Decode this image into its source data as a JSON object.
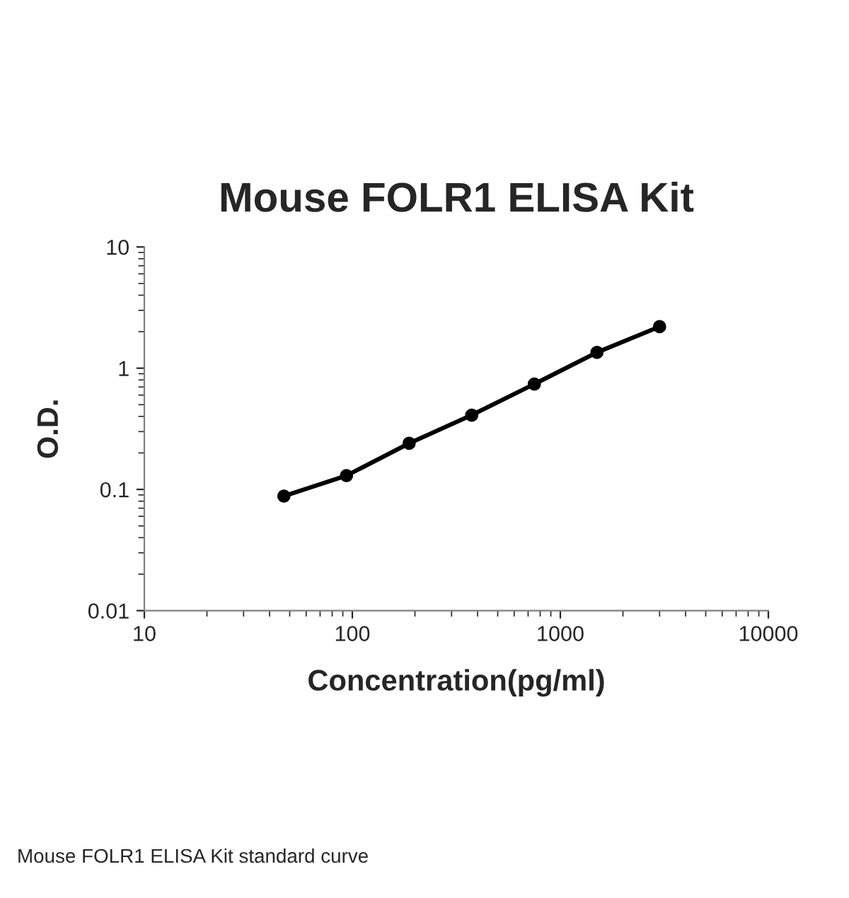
{
  "chart_data": {
    "type": "line",
    "title": "Mouse FOLR1 ELISA Kit",
    "xlabel": "Concentration(pg/ml)",
    "ylabel": "O.D.",
    "x": [
      46.875,
      93.75,
      187.5,
      375,
      750,
      1500,
      3000
    ],
    "series": [
      {
        "color": "#000000",
        "values": [
          0.088,
          0.13,
          0.24,
          0.41,
          0.74,
          1.35,
          2.2
        ]
      }
    ],
    "log": "xy",
    "xlim": [
      10,
      10000
    ],
    "ylim": [
      0.01,
      10
    ],
    "xticks": [
      10,
      100,
      1000,
      10000
    ],
    "yticks": [
      0.01,
      0.1,
      1,
      10
    ],
    "marker": "circle",
    "line_style": "solid",
    "grid": false,
    "legend": false,
    "annotations": [
      "Mouse FOLR1 ELISA Kit standard curve"
    ]
  }
}
